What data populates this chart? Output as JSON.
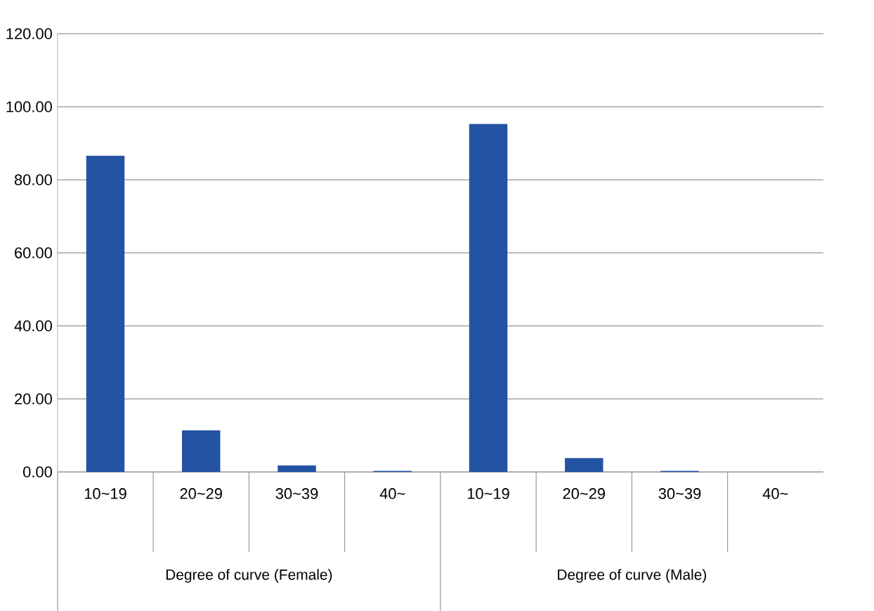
{
  "chart_data": {
    "type": "bar",
    "categories": [
      "10~19",
      "20~29",
      "30~39",
      "40~",
      "10~19",
      "20~29",
      "30~39",
      "40~"
    ],
    "values": [
      86.6,
      11.4,
      1.8,
      0.3,
      95.3,
      3.8,
      0.3,
      0
    ],
    "color": "#2453a4",
    "ylim": [
      0,
      120
    ],
    "yticks": [
      {
        "value": 0,
        "label": "0.00"
      },
      {
        "value": 20,
        "label": "20.00"
      },
      {
        "value": 40,
        "label": "40.00"
      },
      {
        "value": 60,
        "label": "60.00"
      },
      {
        "value": 80,
        "label": "80.00"
      },
      {
        "value": 100,
        "label": "100.00"
      },
      {
        "value": 120,
        "label": "120.00"
      }
    ],
    "grid": "y",
    "annotations": [
      "Degree of curve (Female)",
      "Degree of curve (Male)"
    ]
  }
}
